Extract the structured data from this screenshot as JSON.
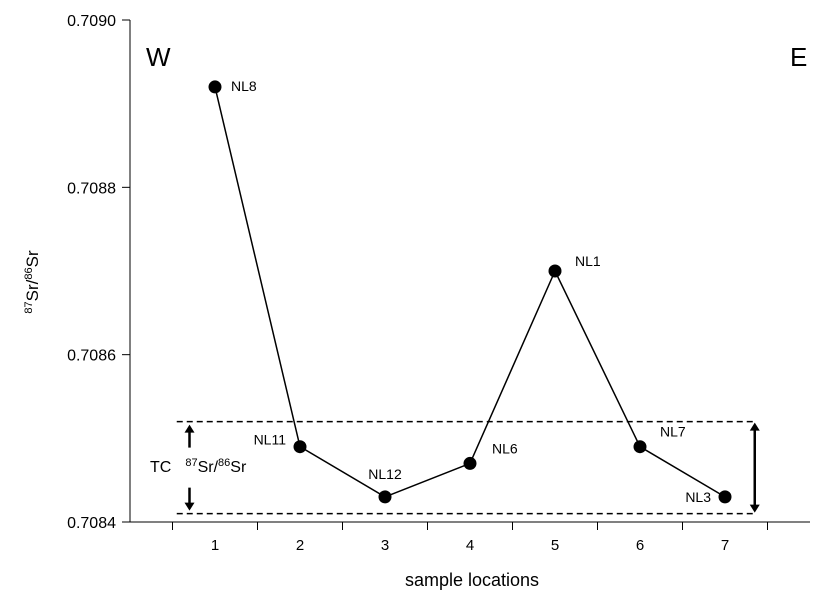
{
  "chart_data": {
    "type": "line",
    "xlabel": "sample locations",
    "ylabel": {
      "sup1": "87",
      "mid": "Sr/",
      "sup2": "86",
      "end": "Sr"
    },
    "x": [
      1,
      2,
      3,
      4,
      5,
      6,
      7
    ],
    "xlim": [
      0,
      8
    ],
    "ylim": [
      0.7084,
      0.709
    ],
    "yticks": [
      "0.7084",
      "0.7086",
      "0.7088",
      "0.7090"
    ],
    "ytick_values": [
      0.7084,
      0.7086,
      0.7088,
      0.709
    ],
    "series": [
      {
        "values": [
          0.70892,
          0.70849,
          0.70843,
          0.70847,
          0.7087,
          0.70849,
          0.70843
        ],
        "labels": [
          "NL8",
          "NL11",
          "NL12",
          "NL6",
          "NL1",
          "NL7",
          "NL3"
        ]
      }
    ],
    "corner_labels": {
      "left": "W",
      "right": "E"
    },
    "tc_band": {
      "range": [
        0.70841,
        0.70852
      ],
      "label": {
        "prefix": "TC",
        "sup1": "87",
        "mid": "Sr/",
        "sup2": "86",
        "end": "Sr"
      }
    }
  }
}
